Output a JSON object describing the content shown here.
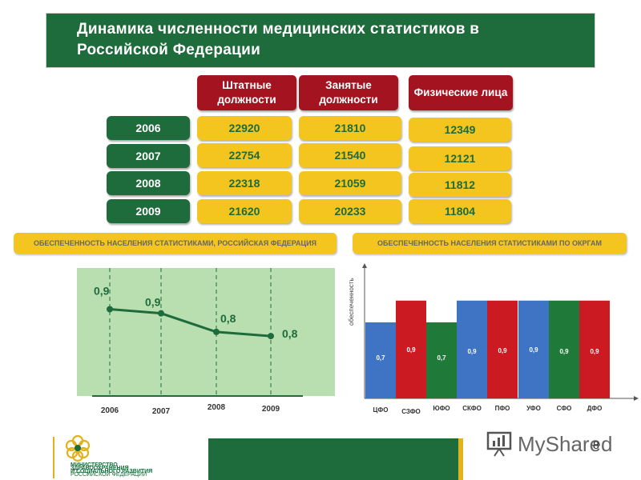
{
  "title": {
    "line1": "Динамика численности медицинских статистиков в",
    "line2": "Российской Федерации"
  },
  "headers": [
    "Штатные должности",
    "Занятые должности",
    "Физические лица"
  ],
  "rows": [
    {
      "year": "2006",
      "values": [
        "22920",
        "21810",
        "12349"
      ]
    },
    {
      "year": "2007",
      "values": [
        "22754",
        "21540",
        "12121"
      ]
    },
    {
      "year": "2008",
      "values": [
        "22318",
        "21059",
        "11812"
      ]
    },
    {
      "year": "2009",
      "values": [
        "21620",
        "20233",
        "11804"
      ]
    }
  ],
  "section_titles": {
    "left": "ОБЕСПЕЧЕННОСТЬ НАСЕЛЕНИЯ СТАТИСТИКАМИ, РОССИЙСКАЯ ФЕДЕРАЦИЯ",
    "right": "ОБЕСПЕЧЕННОСТЬ НАСЕЛЕНИЯ СТАТИСТИКАМИ ПО ОКРГАМ"
  },
  "chart_data": [
    {
      "type": "line",
      "x": [
        "2006",
        "2007",
        "2008",
        "2009"
      ],
      "y": [
        0.92,
        0.9,
        0.81,
        0.79
      ],
      "labels": [
        "0,9",
        "0,9",
        "0,8",
        "0,8"
      ],
      "ylim": [
        0.5,
        1.1
      ],
      "grid": "vertical dashed"
    },
    {
      "type": "bar",
      "ylabel": "обеспеченность",
      "categories": [
        "ЦФО",
        "СЗФО",
        "ЮФО",
        "СКФО",
        "ПФО",
        "УФО",
        "СФО",
        "ДФО"
      ],
      "values": [
        0.7,
        0.9,
        0.7,
        0.9,
        0.9,
        0.9,
        0.9,
        0.9
      ],
      "labels": [
        "0,7",
        "0,9",
        "0,7",
        "0,9",
        "0,9",
        "0,9",
        "0,9",
        "0,9"
      ],
      "colors": [
        "#3f73c4",
        "#cc1a22",
        "#1f7a3a",
        "#3f73c4",
        "#cc1a22",
        "#3f73c4",
        "#1f7a3a",
        "#cc1a22"
      ],
      "ylim": [
        0,
        1.2
      ]
    }
  ],
  "footer": {
    "logo_lines": [
      "МИНИСТЕРСТВО",
      "ЗДРАВООХРАНЕНИЯ",
      "И СОЦИАЛЬНОГО РАЗВИТИЯ",
      "РОССИЙСКОЙ ФЕДЕРАЦИИ"
    ],
    "watermark": "MyShared",
    "page_number": "8"
  }
}
